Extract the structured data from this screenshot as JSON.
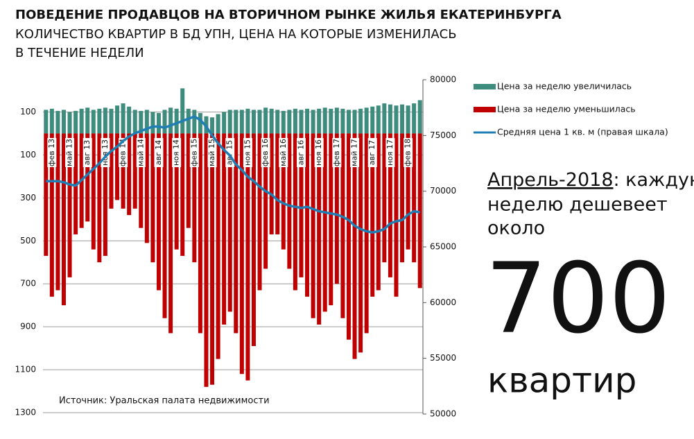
{
  "chart_data": {
    "type": "bar",
    "title": "ПОВЕДЕНИЕ ПРОДАВЦОВ НА ВТОРИЧНОМ РЫНКЕ ЖИЛЬЯ ЕКАТЕРИНБУРГА",
    "subtitle": [
      "КОЛИЧЕСТВО КВАРТИР В БД УПН, ЦЕНА НА КОТОРЫЕ ИЗМЕНИЛАСЬ",
      "В ТЕЧЕНИЕ НЕДЕЛИ"
    ],
    "source": "Источник: Уральская палата недвижимости",
    "callout": {
      "period": "Апрель-2018",
      "lines": [
        ": каждую",
        "неделю дешевеет",
        "около"
      ],
      "number": "700",
      "unit": "квартир"
    },
    "categories": [
      null,
      "фев 13",
      null,
      null,
      "май 13",
      null,
      null,
      "авг 13",
      null,
      null,
      "ноя 13",
      null,
      null,
      "фев 14",
      null,
      null,
      "май 14",
      null,
      null,
      "авг 14",
      null,
      null,
      "ноя 14",
      null,
      null,
      "фев 15",
      null,
      null,
      "май 15",
      null,
      null,
      "авг 15",
      null,
      null,
      "ноя 15",
      null,
      null,
      "фев 16",
      null,
      null,
      "май 16",
      null,
      null,
      "авг 16",
      null,
      null,
      "ноя 16",
      null,
      null,
      "фев 17",
      null,
      null,
      "май 17",
      null,
      null,
      "авг 17",
      null,
      null,
      "ноя 17",
      null,
      null,
      "фев 18",
      null,
      null
    ],
    "series": [
      {
        "name": "Цена за неделю увеличилась",
        "color": "#3d8c7e",
        "axis": "y",
        "values": [
          110,
          115,
          105,
          110,
          100,
          105,
          115,
          120,
          110,
          115,
          120,
          115,
          130,
          140,
          125,
          110,
          105,
          110,
          100,
          95,
          110,
          120,
          115,
          210,
          115,
          110,
          95,
          80,
          75,
          90,
          100,
          110,
          110,
          110,
          115,
          110,
          110,
          120,
          115,
          110,
          105,
          110,
          115,
          110,
          115,
          110,
          115,
          120,
          115,
          120,
          115,
          110,
          110,
          115,
          120,
          125,
          130,
          140,
          135,
          130,
          135,
          130,
          140,
          155
        ]
      },
      {
        "name": "Цена за неделю уменьшилась",
        "color": "#c00000",
        "axis": "y",
        "values": [
          -570,
          -760,
          -730,
          -800,
          -670,
          -470,
          -440,
          -410,
          -540,
          -600,
          -570,
          -350,
          -310,
          -350,
          -380,
          -350,
          -440,
          -510,
          -600,
          -730,
          -860,
          -930,
          -540,
          -570,
          -440,
          -600,
          -930,
          -1180,
          -1170,
          -1050,
          -890,
          -830,
          -930,
          -1120,
          -1150,
          -990,
          -730,
          -630,
          -470,
          -470,
          -540,
          -630,
          -730,
          -670,
          -760,
          -860,
          -890,
          -830,
          -800,
          -700,
          -860,
          -960,
          -1050,
          -1020,
          -930,
          -760,
          -730,
          -600,
          -670,
          -760,
          -600,
          -540,
          -600,
          -720
        ]
      },
      {
        "name": "Средняя цена 1 кв. м (правая шкала)",
        "color": "#1f7fb4",
        "axis": "y2",
        "type": "line",
        "values": [
          70900,
          70900,
          70900,
          70800,
          70600,
          70500,
          71000,
          71500,
          72000,
          72500,
          73100,
          73600,
          74000,
          74500,
          74900,
          75200,
          75400,
          75600,
          75800,
          75800,
          75700,
          75900,
          76100,
          76300,
          76500,
          76700,
          76400,
          75800,
          75000,
          74300,
          73700,
          73200,
          72400,
          71900,
          71300,
          70900,
          70400,
          70000,
          69700,
          69200,
          68900,
          68700,
          68600,
          68500,
          68600,
          68400,
          68200,
          68100,
          68000,
          67900,
          67700,
          67400,
          66900,
          66600,
          66400,
          66300,
          66400,
          66600,
          67100,
          67300,
          67400,
          67900,
          68200,
          68100
        ]
      }
    ],
    "ylim": [
      -1300,
      250
    ],
    "yticks": [
      100,
      {
        "value": -100,
        "label": "100"
      },
      {
        "value": -300,
        "label": "300"
      },
      {
        "value": -500,
        "label": "500"
      },
      {
        "value": -700,
        "label": "700"
      },
      {
        "value": -900,
        "label": "900"
      },
      {
        "value": -1100,
        "label": "1100"
      },
      {
        "value": -1300,
        "label": "1300"
      }
    ],
    "y2lim": [
      50000,
      80000
    ],
    "y2ticks": [
      50000,
      55000,
      60000,
      65000,
      70000,
      75000,
      80000
    ],
    "grid": true
  }
}
